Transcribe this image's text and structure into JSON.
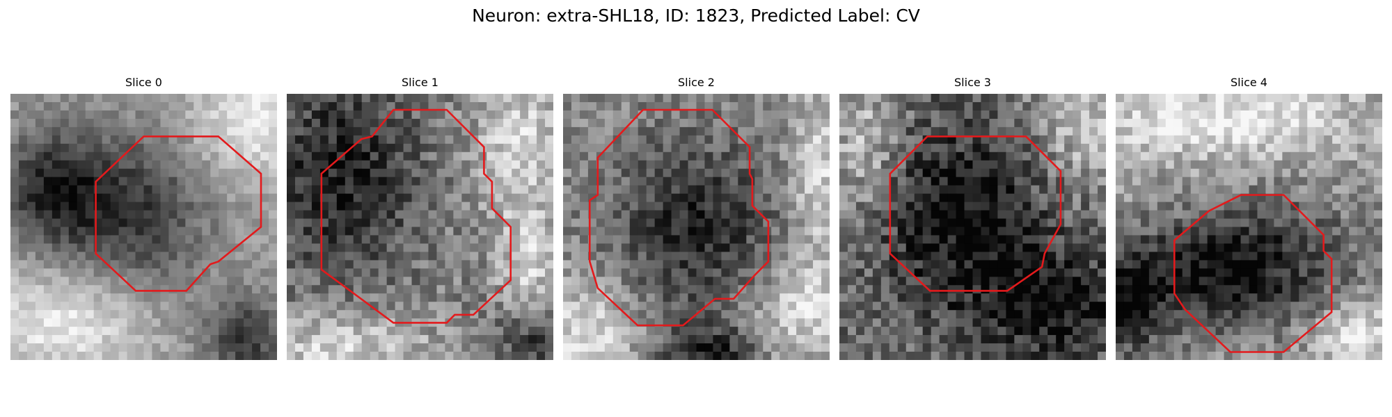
{
  "figure": {
    "title": "Neuron: extra-SHL18, ID: 1823, Predicted Label: CV"
  },
  "style": {
    "contour_color": "#e31a1c",
    "colormap": "gray"
  },
  "panels": [
    {
      "title": "Slice 0",
      "tone_icon": "grayscale-microscopy-image"
    },
    {
      "title": "Slice 1",
      "tone_icon": "grayscale-microscopy-image"
    },
    {
      "title": "Slice 2",
      "tone_icon": "grayscale-microscopy-image"
    },
    {
      "title": "Slice 3",
      "tone_icon": "grayscale-microscopy-image"
    },
    {
      "title": "Slice 4",
      "tone_icon": "grayscale-microscopy-image"
    }
  ]
}
